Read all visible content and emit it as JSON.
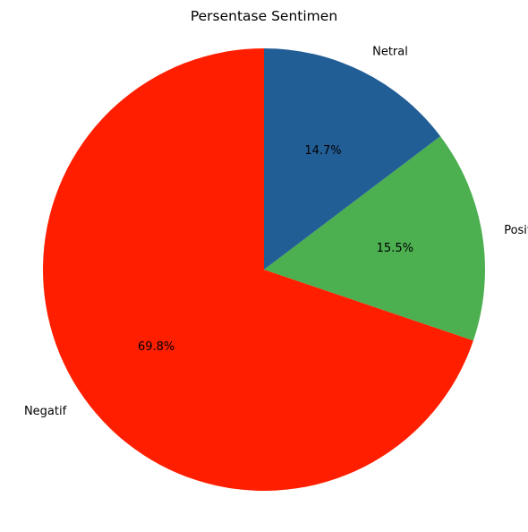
{
  "chart_data": {
    "type": "pie",
    "title": "Persentase Sentimen",
    "start_angle_deg": 90,
    "direction": "counterclockwise",
    "slices": [
      {
        "label": "Negatif",
        "value": 69.8,
        "pct_label": "69.8%",
        "color": "#ff1f00"
      },
      {
        "label": "Positif",
        "value": 15.5,
        "pct_label": "15.5%",
        "color": "#4caf50"
      },
      {
        "label": "Netral",
        "value": 14.7,
        "pct_label": "14.7%",
        "color": "#225e96"
      }
    ]
  }
}
